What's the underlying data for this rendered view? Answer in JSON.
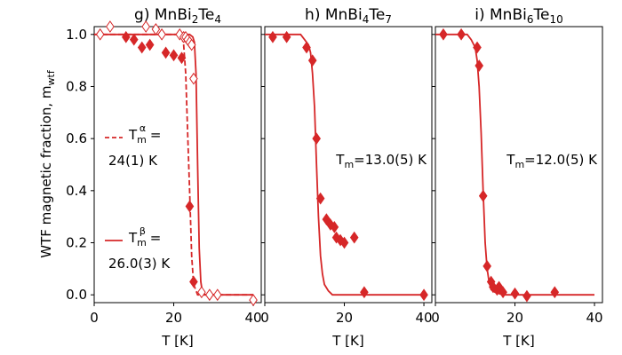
{
  "figure": {
    "ylabel": "WTF magnetic fraction, m",
    "ylabel_sub": "wtf",
    "line_color": "#d62728"
  },
  "chart_data": [
    {
      "type": "line",
      "title": "g) MnBi",
      "title_parts": [
        "g) MnBi",
        "2",
        "Te",
        "4"
      ],
      "xlabel": "T [K]",
      "ylabel": "WTF magnetic fraction, m_wtf",
      "xlim": [
        0,
        42
      ],
      "ylim": [
        -0.03,
        1.03
      ],
      "xticks": [
        0,
        20,
        40
      ],
      "yticks": [
        0.0,
        0.2,
        0.4,
        0.6,
        0.8,
        1.0
      ],
      "ytick_labels": [
        "0.0",
        "0.2",
        "0.4",
        "0.6",
        "0.8",
        "1.0"
      ],
      "grid": false,
      "series": [
        {
          "name": "alpha fit (dashed)",
          "style": "dashed",
          "x": [
            0,
            20,
            21,
            22,
            22.5,
            23,
            23.5,
            24,
            24.5,
            25,
            26,
            30,
            40
          ],
          "y": [
            1.0,
            1.0,
            1.0,
            0.99,
            0.96,
            0.85,
            0.62,
            0.4,
            0.15,
            0.04,
            0.0,
            0.0,
            0.0
          ]
        },
        {
          "name": "beta fit (solid)",
          "style": "solid",
          "x": [
            0,
            24,
            24.8,
            25.2,
            25.6,
            26,
            26.4,
            26.8,
            27.2,
            28,
            30,
            40
          ],
          "y": [
            1.0,
            1.0,
            0.99,
            0.97,
            0.85,
            0.5,
            0.18,
            0.05,
            0.01,
            0.0,
            0.0,
            0.0
          ]
        },
        {
          "name": "filled data",
          "marker": "filled-diamond",
          "x": [
            8,
            10,
            12,
            14,
            18,
            20,
            22,
            24,
            25
          ],
          "y": [
            0.99,
            0.98,
            0.95,
            0.96,
            0.93,
            0.92,
            0.91,
            0.34,
            0.05
          ]
        },
        {
          "name": "open data",
          "marker": "open-diamond",
          "x": [
            1.5,
            4,
            13,
            15.5,
            17,
            21.5,
            22.5,
            23,
            23.5,
            24,
            24.5,
            25,
            27,
            29,
            31,
            40
          ],
          "y": [
            1.0,
            1.03,
            1.03,
            1.02,
            1.0,
            1.0,
            0.99,
            0.99,
            0.98,
            0.97,
            0.96,
            0.83,
            0.01,
            0.0,
            0.0,
            -0.02
          ]
        }
      ],
      "legend": {
        "placement": "center-left",
        "alpha": {
          "symbol": "T",
          "sub": "m",
          "sup": "α",
          "eq": " =",
          "value": "24(1) K"
        },
        "beta": {
          "symbol": "T",
          "sub": "m",
          "sup": "β",
          "eq": " =",
          "value": "26.0(3)  K"
        }
      }
    },
    {
      "type": "line",
      "title": "h) MnBi",
      "title_parts": [
        "h) MnBi",
        "4",
        "Te",
        "7"
      ],
      "xlabel": "T [K]",
      "xlim": [
        0,
        42
      ],
      "ylim": [
        -0.03,
        1.03
      ],
      "xticks": [
        0,
        20,
        40
      ],
      "grid": false,
      "series": [
        {
          "name": "fit",
          "style": "solid",
          "x": [
            0,
            9,
            10,
            11,
            11.5,
            12,
            12.5,
            13,
            13.5,
            14,
            14.5,
            15,
            16,
            17,
            20,
            40
          ],
          "y": [
            1.0,
            1.0,
            0.98,
            0.96,
            0.93,
            0.85,
            0.72,
            0.5,
            0.3,
            0.15,
            0.08,
            0.04,
            0.015,
            0.0,
            0.0,
            0.0
          ]
        },
        {
          "name": "data",
          "marker": "filled-diamond",
          "x": [
            2,
            5.5,
            10.5,
            12,
            13,
            14,
            15.5,
            16.5,
            17.5,
            18,
            19,
            20,
            22.5,
            25,
            40
          ],
          "y": [
            0.99,
            0.99,
            0.95,
            0.9,
            0.6,
            0.37,
            0.29,
            0.27,
            0.26,
            0.22,
            0.21,
            0.2,
            0.22,
            0.01,
            0.0
          ]
        }
      ],
      "annotation": {
        "symbol": "T",
        "sub": "m",
        "value": "=13.0(5) K"
      }
    },
    {
      "type": "line",
      "title": "i) MnBi",
      "title_parts": [
        "i) MnBi",
        "6",
        "Te",
        "10"
      ],
      "xlabel": "T [K]",
      "xlim": [
        0,
        42
      ],
      "ylim": [
        -0.03,
        1.03
      ],
      "xticks": [
        0,
        20,
        40
      ],
      "grid": false,
      "series": [
        {
          "name": "fit",
          "style": "solid",
          "x": [
            0,
            8,
            9,
            10,
            10.5,
            11,
            11.5,
            12,
            12.5,
            13,
            13.5,
            14,
            15,
            17,
            20,
            40
          ],
          "y": [
            1.0,
            1.0,
            0.98,
            0.95,
            0.9,
            0.8,
            0.62,
            0.4,
            0.2,
            0.1,
            0.05,
            0.02,
            0.01,
            0.0,
            0.0,
            0.0
          ]
        },
        {
          "name": "data",
          "marker": "filled-diamond",
          "x": [
            2,
            6.5,
            10.5,
            11,
            12,
            13,
            14,
            14.5,
            15.5,
            16,
            17,
            20,
            23,
            30
          ],
          "y": [
            1.0,
            1.0,
            0.95,
            0.88,
            0.38,
            0.11,
            0.05,
            0.03,
            0.02,
            0.03,
            0.01,
            0.005,
            -0.005,
            0.01
          ]
        }
      ],
      "annotation": {
        "symbol": "T",
        "sub": "m",
        "value": "=12.0(5) K"
      }
    }
  ]
}
